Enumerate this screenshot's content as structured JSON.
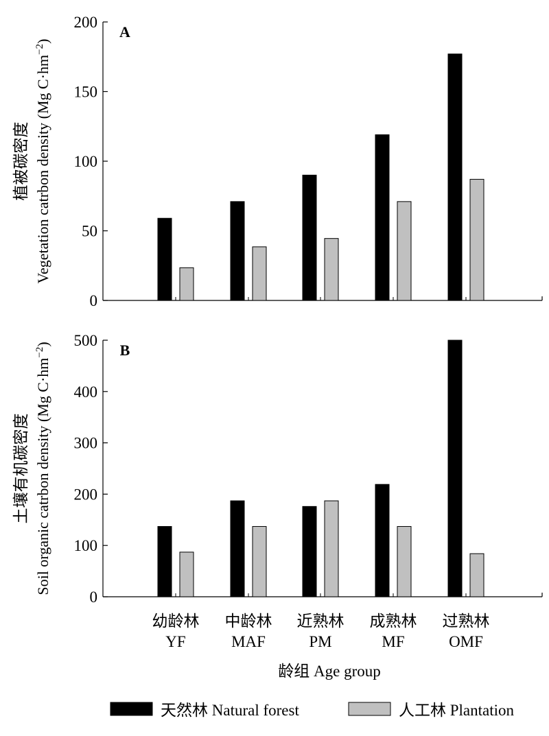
{
  "chart_data": [
    {
      "type": "bar",
      "panel_label": "A",
      "ylabel_zh": "植被碳密度",
      "ylabel_en_prefix": "Vegetation catrbon density (Mg C·hm",
      "ylabel_en_exp": "−2",
      "ylabel_en_suffix": ")",
      "ylim": [
        0,
        200
      ],
      "yticks": [
        "0",
        "50",
        "100",
        "150",
        "200"
      ],
      "categories": [
        "YF",
        "MAF",
        "PM",
        "MF",
        "OMF"
      ],
      "series": [
        {
          "name": "天然林 Natural forest",
          "color": "#000000",
          "values": [
            59,
            71,
            90,
            119,
            177
          ]
        },
        {
          "name": "人工林 Plantation",
          "color": "#c0c0c0",
          "values": [
            23.5,
            38.5,
            44.5,
            71,
            87
          ]
        }
      ]
    },
    {
      "type": "bar",
      "panel_label": "B",
      "ylabel_zh": "土壤有机碳密度",
      "ylabel_en_prefix": "Soil organic catrbon density (Mg C·hm",
      "ylabel_en_exp": "−2",
      "ylabel_en_suffix": ")",
      "ylim": [
        0,
        500
      ],
      "yticks": [
        "0",
        "100",
        "200",
        "300",
        "400",
        "500"
      ],
      "categories": [
        "YF",
        "MAF",
        "PM",
        "MF",
        "OMF"
      ],
      "series": [
        {
          "name": "天然林 Natural forest",
          "color": "#000000",
          "values": [
            137,
            187,
            176,
            219,
            500
          ]
        },
        {
          "name": "人工林 Plantation",
          "color": "#c0c0c0",
          "values": [
            87,
            137,
            187,
            137,
            84
          ]
        }
      ]
    }
  ],
  "x_categories_zh": [
    "幼龄林",
    "中龄林",
    "近熟林",
    "成熟林",
    "过熟林"
  ],
  "x_categories_en": [
    "YF",
    "MAF",
    "PM",
    "MF",
    "OMF"
  ],
  "xlabel": "龄组 Age group",
  "legend": [
    {
      "label": "天然林 Natural forest",
      "color": "#000000"
    },
    {
      "label": "人工林 Plantation",
      "color": "#c0c0c0"
    }
  ]
}
